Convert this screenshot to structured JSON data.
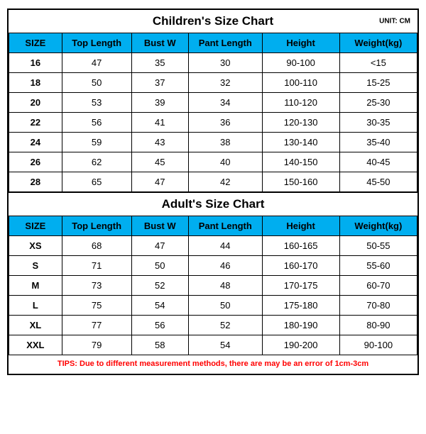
{
  "colors": {
    "header_bg": "#00aeef",
    "border": "#000000",
    "tips": "#ff0000",
    "background": "#ffffff"
  },
  "children": {
    "title": "Children's Size Chart",
    "unit": "UNIT: CM",
    "columns": [
      "SIZE",
      "Top Length",
      "Bust W",
      "Pant Length",
      "Height",
      "Weight(kg)"
    ],
    "rows": [
      [
        "16",
        "47",
        "35",
        "30",
        "90-100",
        "<15"
      ],
      [
        "18",
        "50",
        "37",
        "32",
        "100-110",
        "15-25"
      ],
      [
        "20",
        "53",
        "39",
        "34",
        "110-120",
        "25-30"
      ],
      [
        "22",
        "56",
        "41",
        "36",
        "120-130",
        "30-35"
      ],
      [
        "24",
        "59",
        "43",
        "38",
        "130-140",
        "35-40"
      ],
      [
        "26",
        "62",
        "45",
        "40",
        "140-150",
        "40-45"
      ],
      [
        "28",
        "65",
        "47",
        "42",
        "150-160",
        "45-50"
      ]
    ]
  },
  "adult": {
    "title": "Adult's Size Chart",
    "columns": [
      "SIZE",
      "Top Length",
      "Bust W",
      "Pant Length",
      "Height",
      "Weight(kg)"
    ],
    "rows": [
      [
        "XS",
        "68",
        "47",
        "44",
        "160-165",
        "50-55"
      ],
      [
        "S",
        "71",
        "50",
        "46",
        "160-170",
        "55-60"
      ],
      [
        "M",
        "73",
        "52",
        "48",
        "170-175",
        "60-70"
      ],
      [
        "L",
        "75",
        "54",
        "50",
        "175-180",
        "70-80"
      ],
      [
        "XL",
        "77",
        "56",
        "52",
        "180-190",
        "80-90"
      ],
      [
        "XXL",
        "79",
        "58",
        "54",
        "190-200",
        "90-100"
      ]
    ]
  },
  "tips": "TIPS: Due to different measurement methods, there are may be an error of 1cm-3cm"
}
